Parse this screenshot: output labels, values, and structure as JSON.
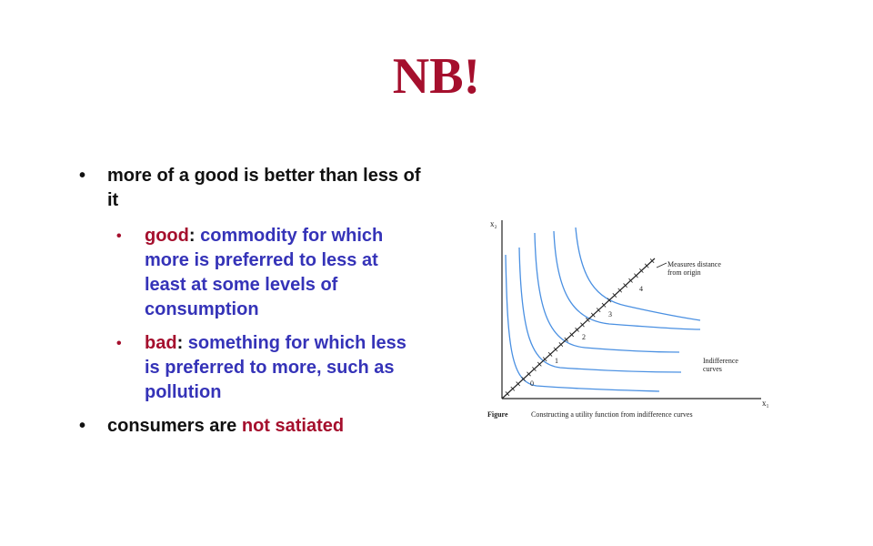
{
  "slide": {
    "title": "NB!"
  },
  "bullets": {
    "b1": "more of a good is better than less of it",
    "good_term": "good",
    "good_colon": ":",
    "good_def": " commodity for which more is preferred to less at least at some levels of consumption",
    "bad_term": "bad",
    "bad_colon": ":",
    "bad_def": " something for which less is preferred to more, such as pollution",
    "b3_prefix": "consumers are ",
    "b3_highlight": "not satiated"
  },
  "figure": {
    "y_axis_label": "x₂",
    "x_axis_label": "x₁",
    "utility_labels": [
      "0",
      "1",
      "2",
      "3",
      "4"
    ],
    "annotation_distance": [
      "Measures distance",
      "from origin"
    ],
    "annotation_curves": [
      "Indifference",
      "curves"
    ],
    "caption_label": "Figure",
    "caption_text": "Constructing a utility function from indifference curves"
  },
  "colors": {
    "title": "#a50f2d",
    "emphasis": "#a50f2d",
    "definition": "#3533b8",
    "curves": "#4a90e2",
    "text": "#111111"
  }
}
